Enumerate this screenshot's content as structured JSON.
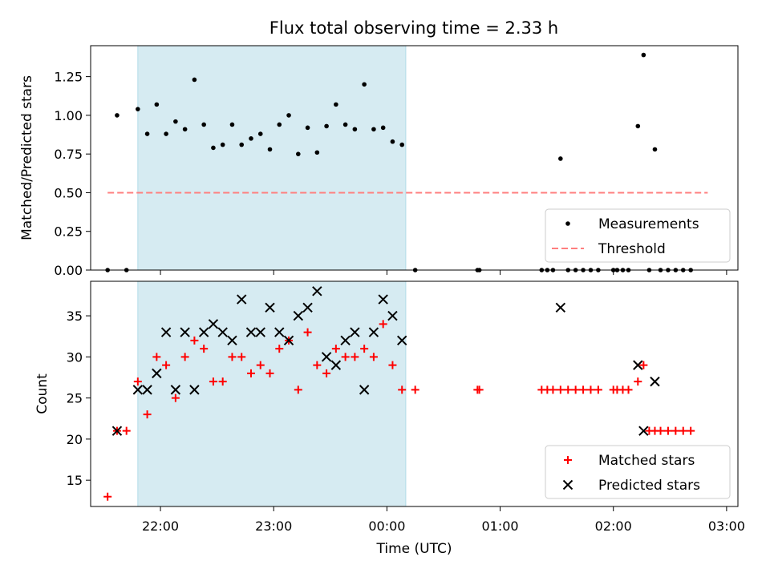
{
  "title": "Flux total observing time = 2.33 h",
  "shade_color": "#add8e6",
  "colors": {
    "measurement": "#000000",
    "threshold": "#ff7f7f",
    "matched": "#ff0000",
    "predicted": "#000000"
  },
  "chart_data": [
    {
      "type": "scatter",
      "ylabel": "Matched/Predicted stars",
      "xlim": [
        "21:23",
        "03:06"
      ],
      "ylim": [
        0,
        1.45
      ],
      "yticks": [
        "0.00",
        "0.25",
        "0.50",
        "0.75",
        "1.00",
        "1.25"
      ],
      "shaded_interval": [
        "21:48",
        "00:10"
      ],
      "legend": {
        "position": "lower right",
        "entries": [
          "Measurements",
          "Threshold"
        ]
      },
      "threshold": {
        "name": "Threshold",
        "y": 0.5,
        "x": [
          "21:32",
          "02:50"
        ]
      },
      "series": [
        {
          "name": "Measurements",
          "marker": "dot",
          "points": [
            [
              "21:32",
              0.0
            ],
            [
              "21:37",
              1.0
            ],
            [
              "21:42",
              0.0
            ],
            [
              "21:48",
              1.04
            ],
            [
              "21:53",
              0.88
            ],
            [
              "21:58",
              1.07
            ],
            [
              "22:03",
              0.88
            ],
            [
              "22:08",
              0.96
            ],
            [
              "22:13",
              0.91
            ],
            [
              "22:18",
              1.23
            ],
            [
              "22:23",
              0.94
            ],
            [
              "22:28",
              0.79
            ],
            [
              "22:33",
              0.81
            ],
            [
              "22:38",
              0.94
            ],
            [
              "22:43",
              0.81
            ],
            [
              "22:48",
              0.85
            ],
            [
              "22:53",
              0.88
            ],
            [
              "22:58",
              0.78
            ],
            [
              "23:03",
              0.94
            ],
            [
              "23:08",
              1.0
            ],
            [
              "23:13",
              0.75
            ],
            [
              "23:18",
              0.92
            ],
            [
              "23:23",
              0.76
            ],
            [
              "23:28",
              0.93
            ],
            [
              "23:33",
              1.07
            ],
            [
              "23:38",
              0.94
            ],
            [
              "23:43",
              0.91
            ],
            [
              "23:48",
              1.2
            ],
            [
              "23:53",
              0.91
            ],
            [
              "23:58",
              0.92
            ],
            [
              "00:03",
              0.83
            ],
            [
              "00:08",
              0.81
            ],
            [
              "00:15",
              0.0
            ],
            [
              "00:48",
              0.0
            ],
            [
              "00:49",
              0.0
            ],
            [
              "01:22",
              0.0
            ],
            [
              "01:25",
              0.0
            ],
            [
              "01:28",
              0.0
            ],
            [
              "01:32",
              0.72
            ],
            [
              "01:36",
              0.0
            ],
            [
              "01:40",
              0.0
            ],
            [
              "01:44",
              0.0
            ],
            [
              "01:48",
              0.0
            ],
            [
              "01:52",
              0.0
            ],
            [
              "02:00",
              0.0
            ],
            [
              "02:02",
              0.0
            ],
            [
              "02:05",
              0.0
            ],
            [
              "02:08",
              0.0
            ],
            [
              "02:13",
              0.93
            ],
            [
              "02:16",
              1.39
            ],
            [
              "02:19",
              0.0
            ],
            [
              "02:22",
              0.78
            ],
            [
              "02:25",
              0.0
            ],
            [
              "02:29",
              0.0
            ],
            [
              "02:33",
              0.0
            ],
            [
              "02:37",
              0.0
            ],
            [
              "02:41",
              0.0
            ]
          ]
        }
      ]
    },
    {
      "type": "scatter",
      "ylabel": "Count",
      "xlabel": "Time (UTC)",
      "xlim": [
        "21:23",
        "03:06"
      ],
      "xticks": [
        "22:00",
        "23:00",
        "00:00",
        "01:00",
        "02:00",
        "03:00"
      ],
      "ylim": [
        11.8,
        39.2
      ],
      "yticks": [
        "15",
        "20",
        "25",
        "30",
        "35"
      ],
      "shaded_interval": [
        "21:48",
        "00:10"
      ],
      "legend": {
        "position": "lower right",
        "entries": [
          "Matched stars",
          "Predicted stars"
        ]
      },
      "series": [
        {
          "name": "Matched stars",
          "marker": "plus",
          "points": [
            [
              "21:32",
              13
            ],
            [
              "21:37",
              21
            ],
            [
              "21:42",
              21
            ],
            [
              "21:48",
              27
            ],
            [
              "21:53",
              23
            ],
            [
              "21:58",
              30
            ],
            [
              "22:03",
              29
            ],
            [
              "22:08",
              25
            ],
            [
              "22:13",
              30
            ],
            [
              "22:18",
              32
            ],
            [
              "22:23",
              31
            ],
            [
              "22:28",
              27
            ],
            [
              "22:33",
              27
            ],
            [
              "22:38",
              30
            ],
            [
              "22:43",
              30
            ],
            [
              "22:48",
              28
            ],
            [
              "22:53",
              29
            ],
            [
              "22:58",
              28
            ],
            [
              "23:03",
              31
            ],
            [
              "23:08",
              32
            ],
            [
              "23:13",
              26
            ],
            [
              "23:18",
              33
            ],
            [
              "23:23",
              29
            ],
            [
              "23:28",
              28
            ],
            [
              "23:33",
              31
            ],
            [
              "23:38",
              30
            ],
            [
              "23:43",
              30
            ],
            [
              "23:48",
              31
            ],
            [
              "23:53",
              30
            ],
            [
              "23:58",
              34
            ],
            [
              "00:03",
              29
            ],
            [
              "00:08",
              26
            ],
            [
              "00:15",
              26
            ],
            [
              "00:48",
              26
            ],
            [
              "00:49",
              26
            ],
            [
              "01:22",
              26
            ],
            [
              "01:25",
              26
            ],
            [
              "01:28",
              26
            ],
            [
              "01:32",
              26
            ],
            [
              "01:36",
              26
            ],
            [
              "01:40",
              26
            ],
            [
              "01:44",
              26
            ],
            [
              "01:48",
              26
            ],
            [
              "01:52",
              26
            ],
            [
              "02:00",
              26
            ],
            [
              "02:02",
              26
            ],
            [
              "02:05",
              26
            ],
            [
              "02:08",
              26
            ],
            [
              "02:13",
              27
            ],
            [
              "02:16",
              29
            ],
            [
              "02:19",
              21
            ],
            [
              "02:22",
              21
            ],
            [
              "02:25",
              21
            ],
            [
              "02:29",
              21
            ],
            [
              "02:33",
              21
            ],
            [
              "02:37",
              21
            ],
            [
              "02:41",
              21
            ]
          ]
        },
        {
          "name": "Predicted stars",
          "marker": "x",
          "points": [
            [
              "21:37",
              21
            ],
            [
              "21:48",
              26
            ],
            [
              "21:53",
              26
            ],
            [
              "21:58",
              28
            ],
            [
              "22:03",
              33
            ],
            [
              "22:08",
              26
            ],
            [
              "22:13",
              33
            ],
            [
              "22:18",
              26
            ],
            [
              "22:23",
              33
            ],
            [
              "22:28",
              34
            ],
            [
              "22:33",
              33
            ],
            [
              "22:38",
              32
            ],
            [
              "22:43",
              37
            ],
            [
              "22:48",
              33
            ],
            [
              "22:53",
              33
            ],
            [
              "22:58",
              36
            ],
            [
              "23:03",
              33
            ],
            [
              "23:08",
              32
            ],
            [
              "23:13",
              35
            ],
            [
              "23:18",
              36
            ],
            [
              "23:23",
              38
            ],
            [
              "23:28",
              30
            ],
            [
              "23:33",
              29
            ],
            [
              "23:38",
              32
            ],
            [
              "23:43",
              33
            ],
            [
              "23:48",
              26
            ],
            [
              "23:53",
              33
            ],
            [
              "23:58",
              37
            ],
            [
              "00:03",
              35
            ],
            [
              "00:08",
              32
            ],
            [
              "01:32",
              36
            ],
            [
              "02:13",
              29
            ],
            [
              "02:16",
              21
            ],
            [
              "02:22",
              27
            ]
          ]
        }
      ]
    }
  ]
}
